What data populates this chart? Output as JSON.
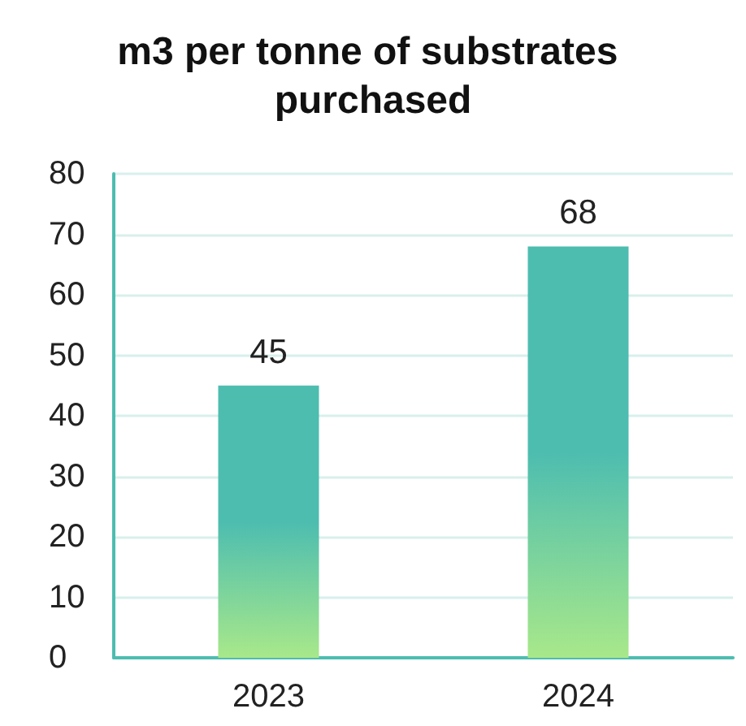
{
  "chart_data": {
    "type": "bar",
    "title": "m3 per tonne of substrates purchased",
    "categories": [
      "2023",
      "2024"
    ],
    "values": [
      45,
      68
    ],
    "color": "#4dbdb0",
    "ylim": [
      0,
      80
    ],
    "yticks": [
      0,
      10,
      20,
      30,
      40,
      50,
      60,
      70,
      80
    ],
    "grid": "y",
    "data_labels": true
  }
}
